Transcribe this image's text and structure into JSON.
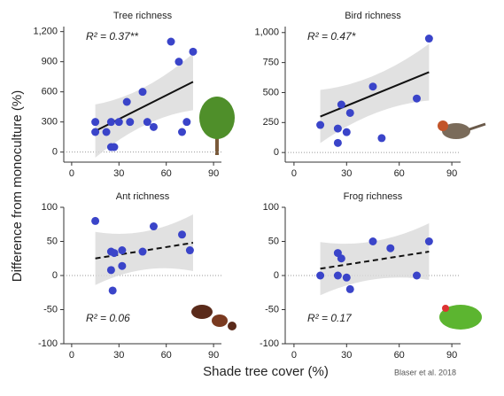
{
  "y_label": "Difference from monoculture (%)",
  "x_label": "Shade tree cover (%)",
  "credit": "Blaser et al. 2018",
  "chart_data": [
    {
      "type": "scatter",
      "title": "Tree richness",
      "annotation": "R² = 0.37**",
      "color": "#3a44c9",
      "x": [
        15,
        15,
        22,
        25,
        25,
        27,
        30,
        35,
        37,
        45,
        48,
        52,
        63,
        68,
        70,
        73,
        77
      ],
      "values": [
        300,
        200,
        200,
        300,
        50,
        50,
        300,
        500,
        300,
        600,
        300,
        250,
        1100,
        900,
        200,
        300,
        1000
      ],
      "fit": {
        "x": [
          15,
          77
        ],
        "y": [
          210,
          700
        ],
        "dashed": false
      },
      "xlim": [
        -5,
        95
      ],
      "ylim": [
        -100,
        1250
      ],
      "xticks": [
        0,
        30,
        60,
        90
      ],
      "yticks": [
        0,
        300,
        600,
        900,
        {
          "value": 1200,
          "label": "1,200"
        }
      ]
    },
    {
      "type": "scatter",
      "title": "Bird richness",
      "annotation": "R² = 0.47*",
      "color": "#3a44c9",
      "x": [
        15,
        25,
        25,
        27,
        30,
        32,
        45,
        50,
        70,
        77
      ],
      "values": [
        230,
        80,
        200,
        400,
        170,
        330,
        550,
        120,
        450,
        950
      ],
      "fit": {
        "x": [
          15,
          77
        ],
        "y": [
          300,
          670
        ],
        "dashed": false
      },
      "xlim": [
        -5,
        95
      ],
      "ylim": [
        -80,
        1050
      ],
      "xticks": [
        0,
        30,
        60,
        90
      ],
      "yticks": [
        0,
        250,
        500,
        750,
        {
          "value": 1000,
          "label": "1,000"
        }
      ]
    },
    {
      "type": "scatter",
      "title": "Ant richness",
      "annotation": "R² = 0.06",
      "color": "#3a44c9",
      "x": [
        15,
        25,
        25,
        26,
        27,
        32,
        32,
        45,
        52,
        70,
        75
      ],
      "values": [
        80,
        35,
        8,
        -22,
        33,
        14,
        37,
        35,
        72,
        60,
        37
      ],
      "fit": {
        "x": [
          15,
          77
        ],
        "y": [
          25,
          48
        ],
        "dashed": true
      },
      "xlim": [
        -5,
        95
      ],
      "ylim": [
        -100,
        100
      ],
      "xticks": [
        0,
        30,
        60,
        90
      ],
      "yticks": [
        -100,
        -50,
        0,
        50,
        100
      ]
    },
    {
      "type": "scatter",
      "title": "Frog richness",
      "annotation": "R² = 0.17",
      "color": "#3a44c9",
      "x": [
        15,
        25,
        27,
        25,
        30,
        32,
        45,
        55,
        70,
        77
      ],
      "values": [
        0,
        33,
        25,
        0,
        -3,
        -20,
        50,
        40,
        0,
        50
      ],
      "fit": {
        "x": [
          15,
          77
        ],
        "y": [
          10,
          35
        ],
        "dashed": true
      },
      "xlim": [
        -5,
        95
      ],
      "ylim": [
        -100,
        100
      ],
      "xticks": [
        0,
        30,
        60,
        90
      ],
      "yticks": [
        -100,
        -50,
        0,
        50,
        100
      ]
    }
  ]
}
